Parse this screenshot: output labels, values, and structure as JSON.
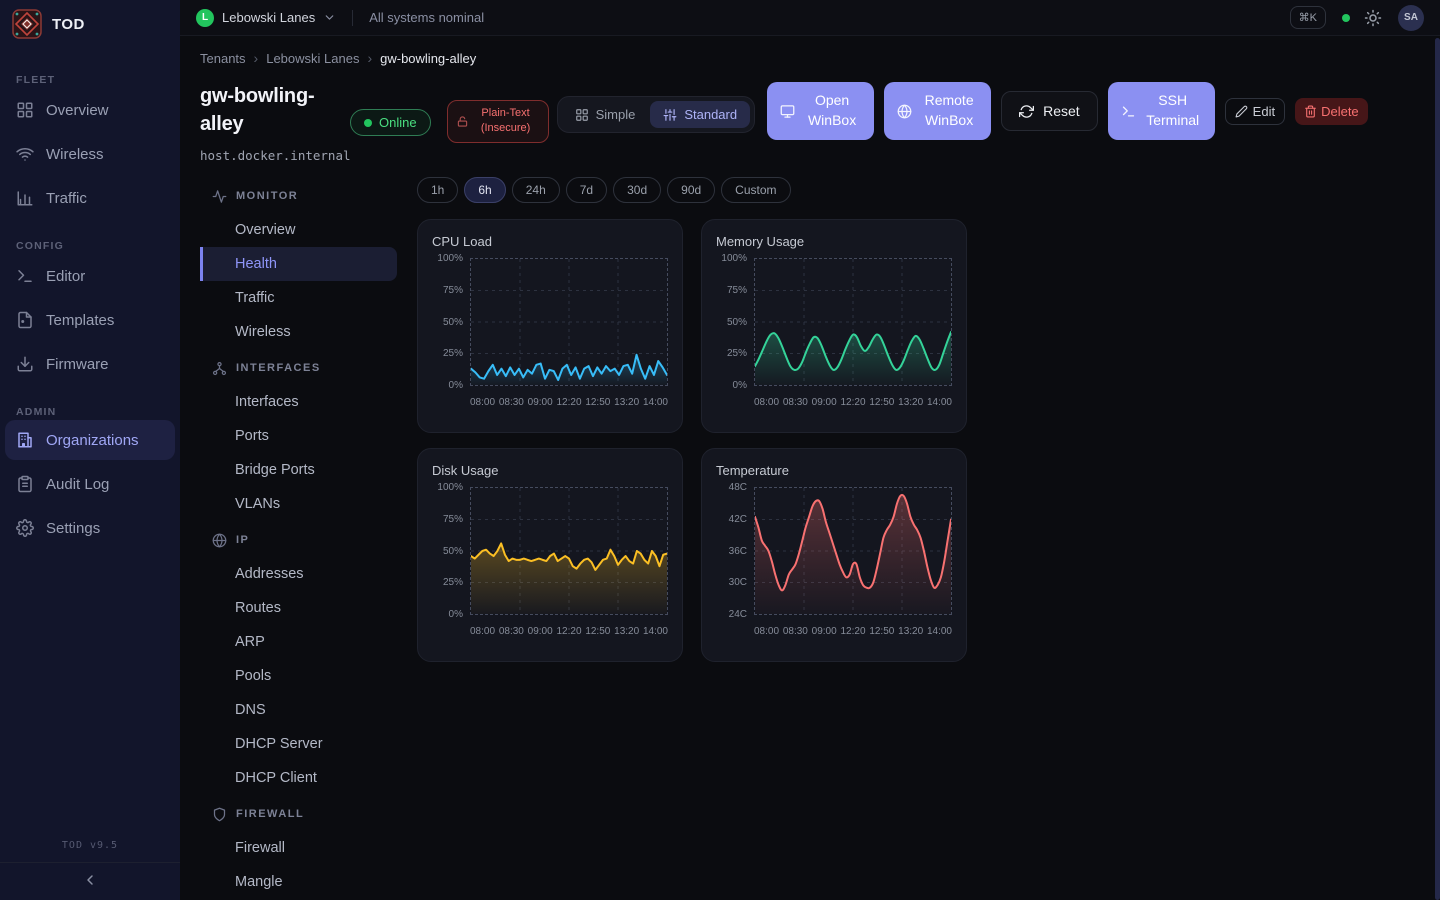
{
  "app": {
    "name": "TOD",
    "version": "TOD v9.5"
  },
  "topbar": {
    "tenant": "Lebowski Lanes",
    "tenant_initial": "L",
    "status": "All systems nominal",
    "shortcut": "⌘K",
    "avatar": "SA"
  },
  "sidebar": {
    "sections": [
      {
        "label": "FLEET",
        "items": [
          {
            "label": "Overview",
            "icon": "grid-icon",
            "active": false
          },
          {
            "label": "Wireless",
            "icon": "wifi-icon",
            "active": false
          },
          {
            "label": "Traffic",
            "icon": "bar-chart-icon",
            "active": false
          }
        ]
      },
      {
        "label": "CONFIG",
        "items": [
          {
            "label": "Editor",
            "icon": "terminal-icon",
            "active": false
          },
          {
            "label": "Templates",
            "icon": "file-icon",
            "active": false
          },
          {
            "label": "Firmware",
            "icon": "download-icon",
            "active": false
          }
        ]
      },
      {
        "label": "ADMIN",
        "items": [
          {
            "label": "Organizations",
            "icon": "building-icon",
            "active": true
          },
          {
            "label": "Audit Log",
            "icon": "clipboard-icon",
            "active": false
          },
          {
            "label": "Settings",
            "icon": "gear-icon",
            "active": false
          }
        ]
      }
    ]
  },
  "breadcrumb": {
    "items": [
      "Tenants",
      "Lebowski Lanes",
      "gw-bowling-alley"
    ]
  },
  "device": {
    "name": "gw-bowling-alley",
    "status": "Online",
    "security_warning": "Plain-Text (Insecure)",
    "host": "host.docker.internal"
  },
  "view_toggle": {
    "options": [
      {
        "label": "Simple",
        "icon": "grid-icon"
      },
      {
        "label": "Standard",
        "icon": "sliders-icon"
      }
    ],
    "selected": "Standard"
  },
  "actions": [
    {
      "label": "Open WinBox",
      "icon": "monitor-icon",
      "style": "primary"
    },
    {
      "label": "Remote WinBox",
      "icon": "globe-icon",
      "style": "primary"
    },
    {
      "label": "Reset",
      "icon": "refresh-icon",
      "style": "dark"
    },
    {
      "label": "SSH Terminal",
      "icon": "terminal-icon",
      "style": "primary"
    },
    {
      "label": "Edit",
      "icon": "pencil-icon",
      "style": "ghost"
    },
    {
      "label": "Delete",
      "icon": "trash-icon",
      "style": "danger"
    }
  ],
  "subnav": {
    "sections": [
      {
        "label": "MONITOR",
        "icon": "activity-icon",
        "items": [
          {
            "label": "Overview",
            "active": false
          },
          {
            "label": "Health",
            "active": true
          },
          {
            "label": "Traffic",
            "active": false
          },
          {
            "label": "Wireless",
            "active": false
          }
        ]
      },
      {
        "label": "INTERFACES",
        "icon": "network-icon",
        "items": [
          {
            "label": "Interfaces",
            "active": false
          },
          {
            "label": "Ports",
            "active": false
          },
          {
            "label": "Bridge Ports",
            "active": false
          },
          {
            "label": "VLANs",
            "active": false
          }
        ]
      },
      {
        "label": "IP",
        "icon": "globe-icon",
        "items": [
          {
            "label": "Addresses",
            "active": false
          },
          {
            "label": "Routes",
            "active": false
          },
          {
            "label": "ARP",
            "active": false
          },
          {
            "label": "Pools",
            "active": false
          },
          {
            "label": "DNS",
            "active": false
          },
          {
            "label": "DHCP Server",
            "active": false
          },
          {
            "label": "DHCP Client",
            "active": false
          }
        ]
      },
      {
        "label": "FIREWALL",
        "icon": "shield-icon",
        "items": [
          {
            "label": "Firewall",
            "active": false
          },
          {
            "label": "Mangle",
            "active": false
          }
        ]
      }
    ]
  },
  "time_ranges": {
    "options": [
      "1h",
      "6h",
      "24h",
      "7d",
      "30d",
      "90d",
      "Custom"
    ],
    "selected": "6h"
  },
  "chart_data": [
    {
      "type": "line",
      "title": "CPU Load",
      "color": "#38bdf8",
      "smooth": false,
      "ylim": [
        0,
        100
      ],
      "yticks": [
        "100%",
        "75%",
        "50%",
        "25%",
        "0%"
      ],
      "xticks": [
        "08:00",
        "08:30",
        "09:00",
        "12:20",
        "12:50",
        "13:20",
        "14:00"
      ],
      "values": [
        13,
        10,
        6,
        5,
        11,
        16,
        8,
        13,
        7,
        14,
        8,
        13,
        6,
        12,
        9,
        16,
        17,
        5,
        12,
        11,
        4,
        13,
        16,
        8,
        14,
        5,
        13,
        15,
        7,
        14,
        9,
        15,
        11,
        13,
        8,
        15,
        16,
        9,
        24,
        13,
        5,
        15,
        8,
        19,
        14,
        8
      ]
    },
    {
      "type": "line",
      "title": "Memory Usage",
      "color": "#34d399",
      "smooth": true,
      "ylim": [
        0,
        100
      ],
      "yticks": [
        "100%",
        "75%",
        "50%",
        "25%",
        "0%"
      ],
      "xticks": [
        "08:00",
        "08:30",
        "09:00",
        "12:20",
        "12:50",
        "13:20",
        "14:00"
      ],
      "values": [
        15,
        21,
        28,
        35,
        40,
        41,
        37,
        30,
        22,
        15,
        12,
        13,
        18,
        26,
        33,
        38,
        37,
        31,
        23,
        16,
        12,
        14,
        20,
        28,
        35,
        40,
        38,
        31,
        27,
        30,
        36,
        40,
        38,
        31,
        23,
        16,
        12,
        14,
        20,
        28,
        35,
        39,
        36,
        29,
        21,
        14,
        12,
        16,
        25,
        34,
        42
      ]
    },
    {
      "type": "line",
      "title": "Disk Usage",
      "color": "#fbbf24",
      "smooth": false,
      "ylim": [
        0,
        100
      ],
      "yticks": [
        "100%",
        "75%",
        "50%",
        "25%",
        "0%"
      ],
      "xticks": [
        "08:00",
        "08:30",
        "09:00",
        "12:20",
        "12:50",
        "13:20",
        "14:00"
      ],
      "values": [
        46,
        44,
        47,
        50,
        51,
        48,
        46,
        50,
        56,
        47,
        42,
        44,
        43,
        43,
        44,
        43,
        42,
        43,
        44,
        43,
        42,
        46,
        48,
        42,
        44,
        46,
        44,
        38,
        36,
        40,
        43,
        44,
        41,
        35,
        39,
        43,
        44,
        51,
        46,
        39,
        43,
        46,
        42,
        40,
        50,
        48,
        43,
        40,
        50,
        46,
        38,
        47,
        48
      ]
    },
    {
      "type": "line",
      "title": "Temperature",
      "color": "#f87171",
      "smooth": true,
      "ylim": [
        24,
        48
      ],
      "yticks": [
        "48C",
        "42C",
        "36C",
        "30C",
        "24C"
      ],
      "xticks": [
        "08:00",
        "08:30",
        "09:00",
        "12:20",
        "12:50",
        "13:20",
        "14:00"
      ],
      "values": [
        42.5,
        40.5,
        38,
        37,
        36,
        34,
        31.5,
        29.5,
        28.5,
        29.5,
        31.5,
        32.5,
        33.5,
        35.5,
        38,
        40.5,
        42.5,
        44.5,
        45.5,
        45.5,
        44,
        41.5,
        39.5,
        37.5,
        35.5,
        33.5,
        32,
        31,
        31.5,
        33.5,
        33.5,
        31,
        29.5,
        29,
        29,
        30,
        32.5,
        35.5,
        38.5,
        40,
        41,
        42.5,
        45,
        46.5,
        46.5,
        45,
        42.5,
        41,
        40,
        38.5,
        36,
        33,
        30.5,
        29,
        29.5,
        31,
        34,
        38,
        42
      ]
    }
  ],
  "colors": {
    "accent": "#8b90f2",
    "online_green": "#22c55e",
    "danger_red": "#f87171"
  }
}
